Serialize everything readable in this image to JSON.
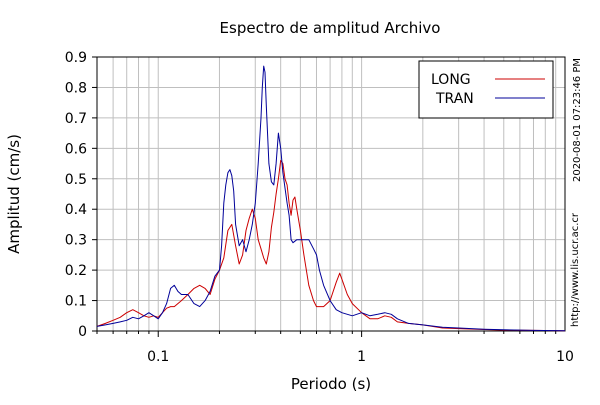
{
  "chart_data": {
    "type": "line",
    "title": "Espectro de amplitud Archivo",
    "xlabel": "Periodo (s)",
    "ylabel": "Amplitud (cm/s)",
    "x_scale": "log",
    "xlim": [
      0.05,
      10
    ],
    "ylim": [
      0,
      0.9
    ],
    "grid": true,
    "legend_position": "top-right",
    "x_ticks": [
      {
        "value": 0.1,
        "label": "0.1"
      },
      {
        "value": 1,
        "label": "1"
      },
      {
        "value": 10,
        "label": "10"
      }
    ],
    "y_ticks": [
      {
        "value": 0,
        "label": "0"
      },
      {
        "value": 0.1,
        "label": "0.1"
      },
      {
        "value": 0.2,
        "label": "0.2"
      },
      {
        "value": 0.3,
        "label": "0.3"
      },
      {
        "value": 0.4,
        "label": "0.4"
      },
      {
        "value": 0.5,
        "label": "0.5"
      },
      {
        "value": 0.6,
        "label": "0.6"
      },
      {
        "value": 0.7,
        "label": "0.7"
      },
      {
        "value": 0.8,
        "label": "0.8"
      },
      {
        "value": 0.9,
        "label": "0.9"
      }
    ],
    "series": [
      {
        "name": "LONG",
        "color": "#cc0000",
        "points": [
          [
            0.05,
            0.015
          ],
          [
            0.055,
            0.025
          ],
          [
            0.06,
            0.035
          ],
          [
            0.065,
            0.045
          ],
          [
            0.07,
            0.06
          ],
          [
            0.075,
            0.07
          ],
          [
            0.08,
            0.06
          ],
          [
            0.085,
            0.05
          ],
          [
            0.09,
            0.045
          ],
          [
            0.095,
            0.05
          ],
          [
            0.1,
            0.045
          ],
          [
            0.105,
            0.06
          ],
          [
            0.11,
            0.075
          ],
          [
            0.115,
            0.08
          ],
          [
            0.12,
            0.08
          ],
          [
            0.13,
            0.1
          ],
          [
            0.14,
            0.12
          ],
          [
            0.15,
            0.14
          ],
          [
            0.16,
            0.15
          ],
          [
            0.17,
            0.14
          ],
          [
            0.18,
            0.12
          ],
          [
            0.19,
            0.17
          ],
          [
            0.2,
            0.2
          ],
          [
            0.21,
            0.24
          ],
          [
            0.22,
            0.33
          ],
          [
            0.23,
            0.35
          ],
          [
            0.24,
            0.28
          ],
          [
            0.25,
            0.22
          ],
          [
            0.26,
            0.25
          ],
          [
            0.27,
            0.33
          ],
          [
            0.28,
            0.37
          ],
          [
            0.29,
            0.4
          ],
          [
            0.3,
            0.37
          ],
          [
            0.31,
            0.3
          ],
          [
            0.32,
            0.27
          ],
          [
            0.33,
            0.24
          ],
          [
            0.34,
            0.22
          ],
          [
            0.35,
            0.26
          ],
          [
            0.36,
            0.34
          ],
          [
            0.37,
            0.39
          ],
          [
            0.38,
            0.45
          ],
          [
            0.39,
            0.5
          ],
          [
            0.4,
            0.56
          ],
          [
            0.41,
            0.55
          ],
          [
            0.42,
            0.5
          ],
          [
            0.43,
            0.48
          ],
          [
            0.44,
            0.42
          ],
          [
            0.45,
            0.38
          ],
          [
            0.46,
            0.43
          ],
          [
            0.47,
            0.44
          ],
          [
            0.48,
            0.4
          ],
          [
            0.5,
            0.33
          ],
          [
            0.52,
            0.25
          ],
          [
            0.55,
            0.15
          ],
          [
            0.58,
            0.1
          ],
          [
            0.6,
            0.08
          ],
          [
            0.65,
            0.08
          ],
          [
            0.7,
            0.1
          ],
          [
            0.75,
            0.16
          ],
          [
            0.78,
            0.19
          ],
          [
            0.8,
            0.17
          ],
          [
            0.85,
            0.12
          ],
          [
            0.9,
            0.09
          ],
          [
            1.0,
            0.06
          ],
          [
            1.1,
            0.04
          ],
          [
            1.2,
            0.04
          ],
          [
            1.3,
            0.05
          ],
          [
            1.4,
            0.045
          ],
          [
            1.5,
            0.03
          ],
          [
            1.7,
            0.025
          ],
          [
            2.0,
            0.02
          ],
          [
            2.5,
            0.01
          ],
          [
            3.0,
            0.008
          ],
          [
            4.0,
            0.005
          ],
          [
            5.0,
            0.003
          ],
          [
            7.0,
            0.002
          ],
          [
            10.0,
            0.001
          ]
        ]
      },
      {
        "name": "TRAN",
        "color": "#000099",
        "points": [
          [
            0.05,
            0.015
          ],
          [
            0.055,
            0.02
          ],
          [
            0.06,
            0.025
          ],
          [
            0.065,
            0.03
          ],
          [
            0.07,
            0.035
          ],
          [
            0.075,
            0.045
          ],
          [
            0.08,
            0.04
          ],
          [
            0.085,
            0.05
          ],
          [
            0.09,
            0.06
          ],
          [
            0.095,
            0.05
          ],
          [
            0.1,
            0.04
          ],
          [
            0.105,
            0.06
          ],
          [
            0.11,
            0.09
          ],
          [
            0.115,
            0.14
          ],
          [
            0.12,
            0.15
          ],
          [
            0.125,
            0.13
          ],
          [
            0.13,
            0.12
          ],
          [
            0.14,
            0.12
          ],
          [
            0.15,
            0.09
          ],
          [
            0.16,
            0.08
          ],
          [
            0.17,
            0.1
          ],
          [
            0.18,
            0.13
          ],
          [
            0.19,
            0.18
          ],
          [
            0.2,
            0.2
          ],
          [
            0.205,
            0.28
          ],
          [
            0.21,
            0.42
          ],
          [
            0.215,
            0.48
          ],
          [
            0.22,
            0.52
          ],
          [
            0.225,
            0.53
          ],
          [
            0.23,
            0.51
          ],
          [
            0.235,
            0.46
          ],
          [
            0.24,
            0.35
          ],
          [
            0.25,
            0.28
          ],
          [
            0.26,
            0.3
          ],
          [
            0.27,
            0.26
          ],
          [
            0.28,
            0.3
          ],
          [
            0.29,
            0.35
          ],
          [
            0.3,
            0.42
          ],
          [
            0.31,
            0.55
          ],
          [
            0.32,
            0.7
          ],
          [
            0.325,
            0.8
          ],
          [
            0.33,
            0.87
          ],
          [
            0.335,
            0.85
          ],
          [
            0.34,
            0.74
          ],
          [
            0.35,
            0.55
          ],
          [
            0.36,
            0.49
          ],
          [
            0.37,
            0.48
          ],
          [
            0.38,
            0.55
          ],
          [
            0.39,
            0.65
          ],
          [
            0.4,
            0.6
          ],
          [
            0.41,
            0.52
          ],
          [
            0.42,
            0.47
          ],
          [
            0.43,
            0.42
          ],
          [
            0.44,
            0.38
          ],
          [
            0.45,
            0.3
          ],
          [
            0.46,
            0.29
          ],
          [
            0.48,
            0.3
          ],
          [
            0.5,
            0.3
          ],
          [
            0.52,
            0.3
          ],
          [
            0.55,
            0.3
          ],
          [
            0.58,
            0.27
          ],
          [
            0.6,
            0.25
          ],
          [
            0.62,
            0.2
          ],
          [
            0.65,
            0.15
          ],
          [
            0.7,
            0.1
          ],
          [
            0.75,
            0.07
          ],
          [
            0.8,
            0.06
          ],
          [
            0.9,
            0.05
          ],
          [
            1.0,
            0.06
          ],
          [
            1.1,
            0.05
          ],
          [
            1.2,
            0.055
          ],
          [
            1.3,
            0.06
          ],
          [
            1.4,
            0.055
          ],
          [
            1.5,
            0.04
          ],
          [
            1.7,
            0.025
          ],
          [
            2.0,
            0.02
          ],
          [
            2.5,
            0.012
          ],
          [
            3.0,
            0.01
          ],
          [
            4.0,
            0.006
          ],
          [
            5.0,
            0.004
          ],
          [
            7.0,
            0.002
          ],
          [
            10.0,
            0.001
          ]
        ]
      }
    ]
  },
  "side_labels": {
    "timestamp": "2020-08-01 07:23:46 PM",
    "url": "http://www.lis.ucr.ac.cr"
  }
}
